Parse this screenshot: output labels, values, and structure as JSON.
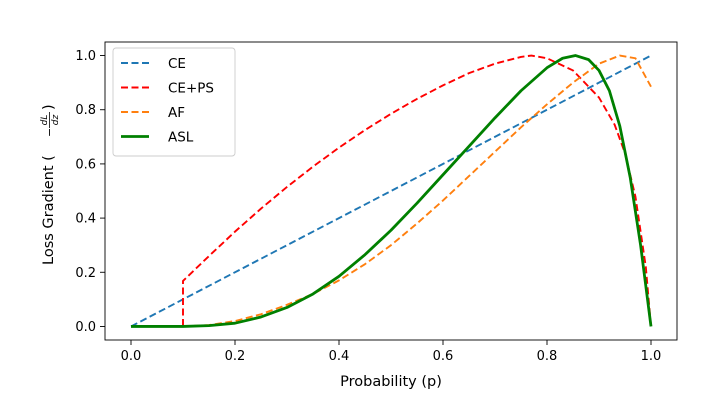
{
  "chart_data": {
    "type": "line",
    "xlabel": "Probability (p)",
    "ylabel_main": "Loss Gradient (",
    "ylabel_frac_num": "dL",
    "ylabel_frac_den": "dz",
    "ylabel_end": ")",
    "ylabel_minus": "−",
    "xlim": [
      -0.05,
      1.05
    ],
    "ylim": [
      -0.05,
      1.05
    ],
    "xticks": [
      0.0,
      0.2,
      0.4,
      0.6,
      0.8,
      1.0
    ],
    "yticks": [
      0.0,
      0.2,
      0.4,
      0.6,
      0.8,
      1.0
    ],
    "xtick_labels": [
      "0.0",
      "0.2",
      "0.4",
      "0.6",
      "0.8",
      "1.0"
    ],
    "ytick_labels": [
      "0.0",
      "0.2",
      "0.4",
      "0.6",
      "0.8",
      "1.0"
    ],
    "grid": false,
    "legend_position": "top-left",
    "series": [
      {
        "name": "CE",
        "color": "#1f77b4",
        "style": "dashed",
        "x": [
          0.0,
          1.0
        ],
        "y": [
          0.0,
          1.0
        ]
      },
      {
        "name": "CE+PS",
        "color": "#ff0000",
        "style": "dashed",
        "x": [
          0.0,
          0.1,
          0.1,
          0.15,
          0.2,
          0.25,
          0.3,
          0.35,
          0.4,
          0.45,
          0.5,
          0.55,
          0.6,
          0.65,
          0.7,
          0.75,
          0.77,
          0.8,
          0.85,
          0.9,
          0.93,
          0.95,
          0.97,
          0.99,
          1.0
        ],
        "y": [
          0.0,
          0.0,
          0.168,
          0.26,
          0.35,
          0.435,
          0.515,
          0.59,
          0.66,
          0.725,
          0.785,
          0.84,
          0.89,
          0.935,
          0.97,
          0.995,
          1.0,
          0.99,
          0.945,
          0.845,
          0.745,
          0.64,
          0.48,
          0.22,
          0.0
        ]
      },
      {
        "name": "AF",
        "color": "#ff7f0e",
        "style": "dashed",
        "x": [
          0.0,
          0.1,
          0.15,
          0.2,
          0.25,
          0.3,
          0.35,
          0.4,
          0.45,
          0.5,
          0.55,
          0.6,
          0.65,
          0.7,
          0.75,
          0.8,
          0.85,
          0.9,
          0.94,
          0.97,
          1.0
        ],
        "y": [
          0.0,
          0.0,
          0.005,
          0.02,
          0.045,
          0.08,
          0.12,
          0.17,
          0.23,
          0.3,
          0.38,
          0.465,
          0.555,
          0.645,
          0.735,
          0.82,
          0.9,
          0.97,
          1.0,
          0.99,
          0.885
        ]
      },
      {
        "name": "ASL",
        "color": "#008000",
        "style": "solid",
        "x": [
          0.0,
          0.1,
          0.15,
          0.2,
          0.25,
          0.3,
          0.35,
          0.4,
          0.45,
          0.5,
          0.55,
          0.6,
          0.65,
          0.7,
          0.75,
          0.8,
          0.83,
          0.855,
          0.88,
          0.9,
          0.92,
          0.94,
          0.96,
          0.98,
          1.0
        ],
        "y": [
          0.0,
          0.0,
          0.003,
          0.012,
          0.035,
          0.07,
          0.12,
          0.185,
          0.265,
          0.355,
          0.455,
          0.56,
          0.665,
          0.77,
          0.87,
          0.955,
          0.99,
          1.0,
          0.985,
          0.945,
          0.87,
          0.74,
          0.55,
          0.3,
          0.0
        ]
      }
    ]
  }
}
